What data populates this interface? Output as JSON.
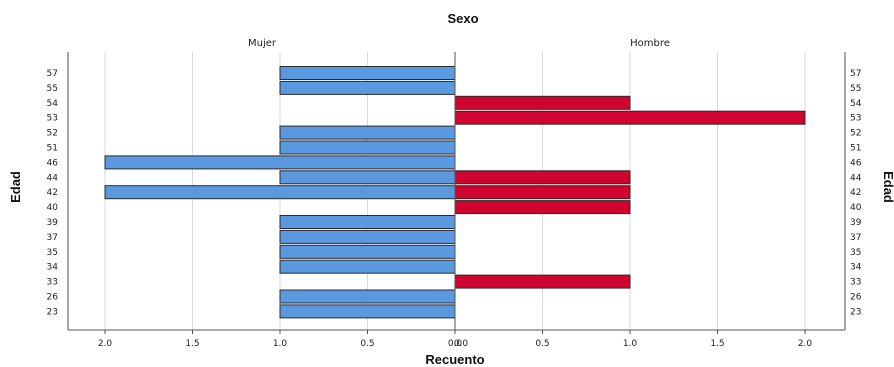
{
  "chart_data": {
    "type": "bar",
    "orientation": "horizontal-population-pyramid",
    "title": "Sexo",
    "xlabel": "Recuento",
    "ylabel": "Edad",
    "panels": [
      "Mujer",
      "Hombre"
    ],
    "categories": [
      "57",
      "55",
      "54",
      "53",
      "52",
      "51",
      "46",
      "44",
      "42",
      "40",
      "39",
      "37",
      "35",
      "34",
      "33",
      "26",
      "23"
    ],
    "series": [
      {
        "name": "Mujer",
        "color": "#5a98e0",
        "values": [
          1,
          1,
          0,
          0,
          1,
          1,
          2,
          1,
          2,
          0,
          1,
          1,
          1,
          1,
          0,
          1,
          1
        ]
      },
      {
        "name": "Hombre",
        "color": "#d1032f",
        "values": [
          0,
          0,
          1,
          2,
          0,
          0,
          0,
          1,
          1,
          1,
          0,
          0,
          0,
          0,
          1,
          0,
          0
        ]
      }
    ],
    "xlim": [
      0,
      2.0
    ],
    "x_ticks_left": [
      "2.0",
      "1.5",
      "1.0",
      "0.5",
      "0.0"
    ],
    "x_ticks_right": [
      "0.0",
      "0.5",
      "1.0",
      "1.5",
      "2.0"
    ],
    "grid": "vertical"
  }
}
